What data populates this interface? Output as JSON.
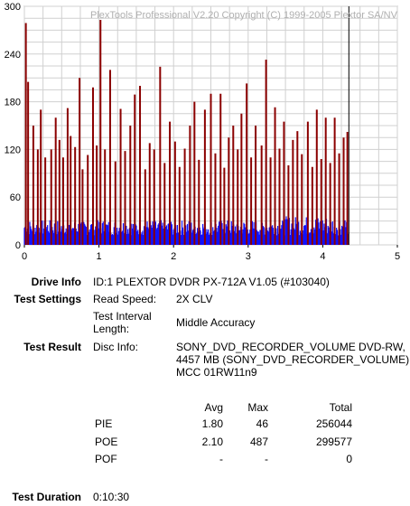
{
  "chart_data": {
    "type": "bar",
    "title": "PlexTools Professional V2.20 Copyright (C) 1999-2005 Plextor SA/NV",
    "xlim": [
      0,
      5
    ],
    "ylim": [
      0,
      300
    ],
    "x_ticks": [
      "0",
      "1",
      "2",
      "3",
      "4",
      "5"
    ],
    "y_ticks": [
      "300",
      "240",
      "180",
      "120",
      "60",
      "0"
    ],
    "end_marker_x": 4.35,
    "grid": true,
    "series": [
      {
        "name": "PIE",
        "color": "#1010ff",
        "baseline_range": [
          12,
          36
        ],
        "max": 46
      },
      {
        "name": "POE",
        "color": "#8b0000",
        "spikes": [
          {
            "x": 0.02,
            "y": 279
          },
          {
            "x": 0.05,
            "y": 205
          },
          {
            "x": 0.12,
            "y": 150
          },
          {
            "x": 0.18,
            "y": 120
          },
          {
            "x": 0.22,
            "y": 170
          },
          {
            "x": 0.28,
            "y": 110
          },
          {
            "x": 0.36,
            "y": 120
          },
          {
            "x": 0.42,
            "y": 160
          },
          {
            "x": 0.47,
            "y": 132
          },
          {
            "x": 0.52,
            "y": 110
          },
          {
            "x": 0.58,
            "y": 172
          },
          {
            "x": 0.62,
            "y": 137
          },
          {
            "x": 0.68,
            "y": 123
          },
          {
            "x": 0.74,
            "y": 210
          },
          {
            "x": 0.78,
            "y": 95
          },
          {
            "x": 0.85,
            "y": 113
          },
          {
            "x": 0.92,
            "y": 198
          },
          {
            "x": 0.97,
            "y": 125
          },
          {
            "x": 1.02,
            "y": 283
          },
          {
            "x": 1.08,
            "y": 120
          },
          {
            "x": 1.15,
            "y": 220
          },
          {
            "x": 1.22,
            "y": 105
          },
          {
            "x": 1.29,
            "y": 171
          },
          {
            "x": 1.35,
            "y": 118
          },
          {
            "x": 1.42,
            "y": 150
          },
          {
            "x": 1.48,
            "y": 189
          },
          {
            "x": 1.55,
            "y": 200
          },
          {
            "x": 1.62,
            "y": 95
          },
          {
            "x": 1.68,
            "y": 128
          },
          {
            "x": 1.74,
            "y": 120
          },
          {
            "x": 1.82,
            "y": 224
          },
          {
            "x": 1.88,
            "y": 103
          },
          {
            "x": 1.95,
            "y": 155
          },
          {
            "x": 2.02,
            "y": 130
          },
          {
            "x": 2.08,
            "y": 98
          },
          {
            "x": 2.15,
            "y": 121
          },
          {
            "x": 2.22,
            "y": 150
          },
          {
            "x": 2.28,
            "y": 180
          },
          {
            "x": 2.34,
            "y": 107
          },
          {
            "x": 2.42,
            "y": 170
          },
          {
            "x": 2.5,
            "y": 190
          },
          {
            "x": 2.56,
            "y": 115
          },
          {
            "x": 2.63,
            "y": 190
          },
          {
            "x": 2.68,
            "y": 97
          },
          {
            "x": 2.74,
            "y": 135
          },
          {
            "x": 2.8,
            "y": 150
          },
          {
            "x": 2.86,
            "y": 120
          },
          {
            "x": 2.91,
            "y": 165
          },
          {
            "x": 2.98,
            "y": 203
          },
          {
            "x": 3.04,
            "y": 110
          },
          {
            "x": 3.1,
            "y": 150
          },
          {
            "x": 3.18,
            "y": 125
          },
          {
            "x": 3.24,
            "y": 233
          },
          {
            "x": 3.3,
            "y": 110
          },
          {
            "x": 3.36,
            "y": 173
          },
          {
            "x": 3.42,
            "y": 121
          },
          {
            "x": 3.48,
            "y": 155
          },
          {
            "x": 3.54,
            "y": 100
          },
          {
            "x": 3.6,
            "y": 132
          },
          {
            "x": 3.66,
            "y": 143
          },
          {
            "x": 3.72,
            "y": 114
          },
          {
            "x": 3.8,
            "y": 155
          },
          {
            "x": 3.86,
            "y": 98
          },
          {
            "x": 3.92,
            "y": 170
          },
          {
            "x": 3.98,
            "y": 108
          },
          {
            "x": 4.04,
            "y": 160
          },
          {
            "x": 4.1,
            "y": 103
          },
          {
            "x": 4.16,
            "y": 160
          },
          {
            "x": 4.22,
            "y": 115
          },
          {
            "x": 4.28,
            "y": 135
          },
          {
            "x": 4.33,
            "y": 142
          }
        ],
        "max": 487
      }
    ]
  },
  "info": {
    "drive_info_label": "Drive Info",
    "drive_info_value": "ID:1 PLEXTOR DVDR PX-712A V1.05 (#103040)",
    "test_settings_label": "Test Settings",
    "read_speed_label": "Read Speed:",
    "read_speed_value": "2X CLV",
    "interval_label_1": "Test Interval",
    "interval_label_2": "Length:",
    "interval_value": "Middle Accuracy",
    "test_result_label": "Test Result",
    "disc_info_label": "Disc Info:",
    "disc_info_line1": "SONY_DVD_RECORDER_VOLUME DVD-RW,",
    "disc_info_line2": "4457 MB (SONY_DVD_RECORDER_VOLUME)",
    "disc_info_line3": "MCC 01RW11n9",
    "test_duration_label": "Test Duration",
    "test_duration_value": "0:10:30"
  },
  "table": {
    "headers": [
      "Avg",
      "Max",
      "Total"
    ],
    "rows": [
      {
        "name": "PIE",
        "avg": "1.80",
        "max": "46",
        "total": "256044"
      },
      {
        "name": "POE",
        "avg": "2.10",
        "max": "487",
        "total": "299577"
      },
      {
        "name": "POF",
        "avg": "-",
        "max": "-",
        "total": "0"
      }
    ]
  }
}
